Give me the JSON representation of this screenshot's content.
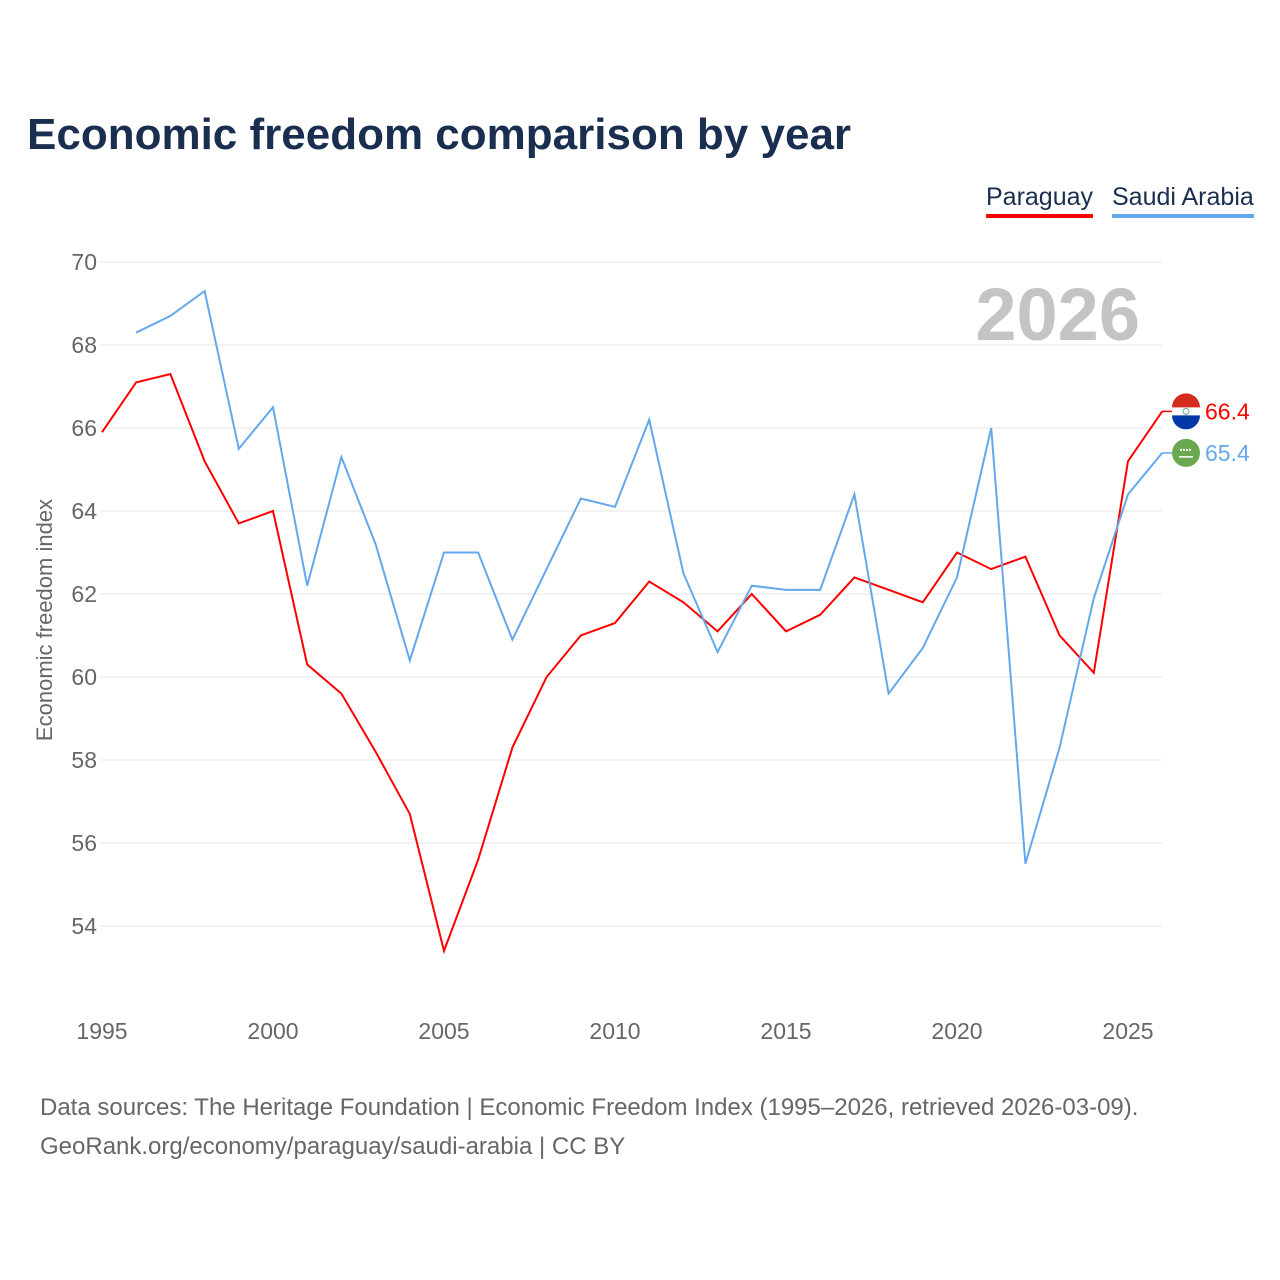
{
  "chart_data": {
    "type": "line",
    "title": "Economic freedom comparison by year",
    "ylabel": "Economic freedom index",
    "xlabel": "",
    "ylim": [
      52,
      70
    ],
    "xlim": [
      1995,
      2026
    ],
    "yticks": [
      54,
      56,
      58,
      60,
      62,
      64,
      66,
      68,
      70
    ],
    "xticks": [
      1995,
      2000,
      2005,
      2010,
      2015,
      2020,
      2025
    ],
    "watermark": "2026",
    "legend_position": "top-right",
    "series": [
      {
        "name": "Paraguay",
        "color": "#ff0000",
        "end_label": "66.4",
        "x": [
          1995,
          1996,
          1997,
          1998,
          1999,
          2000,
          2001,
          2002,
          2003,
          2004,
          2005,
          2006,
          2007,
          2008,
          2009,
          2010,
          2011,
          2012,
          2013,
          2014,
          2015,
          2016,
          2017,
          2018,
          2019,
          2020,
          2021,
          2022,
          2023,
          2024,
          2025,
          2026
        ],
        "values": [
          65.9,
          67.1,
          67.3,
          65.2,
          63.7,
          64.0,
          60.3,
          59.6,
          58.2,
          56.7,
          53.4,
          55.6,
          58.3,
          60.0,
          61.0,
          61.3,
          62.3,
          61.8,
          61.1,
          62.0,
          61.1,
          61.5,
          62.4,
          62.1,
          61.8,
          63.0,
          62.6,
          62.9,
          61.0,
          60.1,
          65.2,
          66.4
        ]
      },
      {
        "name": "Saudi Arabia",
        "color": "#64a8ec",
        "end_label": "65.4",
        "x": [
          1996,
          1997,
          1998,
          1999,
          2000,
          2001,
          2002,
          2003,
          2004,
          2005,
          2006,
          2007,
          2008,
          2009,
          2010,
          2011,
          2012,
          2013,
          2014,
          2015,
          2016,
          2017,
          2018,
          2019,
          2020,
          2021,
          2022,
          2023,
          2024,
          2025,
          2026
        ],
        "values": [
          68.3,
          68.7,
          69.3,
          65.5,
          66.5,
          62.2,
          65.3,
          63.2,
          60.4,
          63.0,
          63.0,
          60.9,
          62.6,
          64.3,
          64.1,
          66.2,
          62.5,
          60.6,
          62.2,
          62.1,
          62.1,
          64.4,
          59.6,
          60.7,
          62.4,
          66.0,
          55.5,
          58.3,
          61.9,
          64.4,
          65.4
        ]
      }
    ]
  },
  "footer": {
    "line1": "Data sources: The Heritage Foundation | Economic Freedom Index (1995–2026, retrieved 2026-03-09).",
    "line2": "GeoRank.org/economy/paraguay/saudi-arabia | CC BY"
  }
}
